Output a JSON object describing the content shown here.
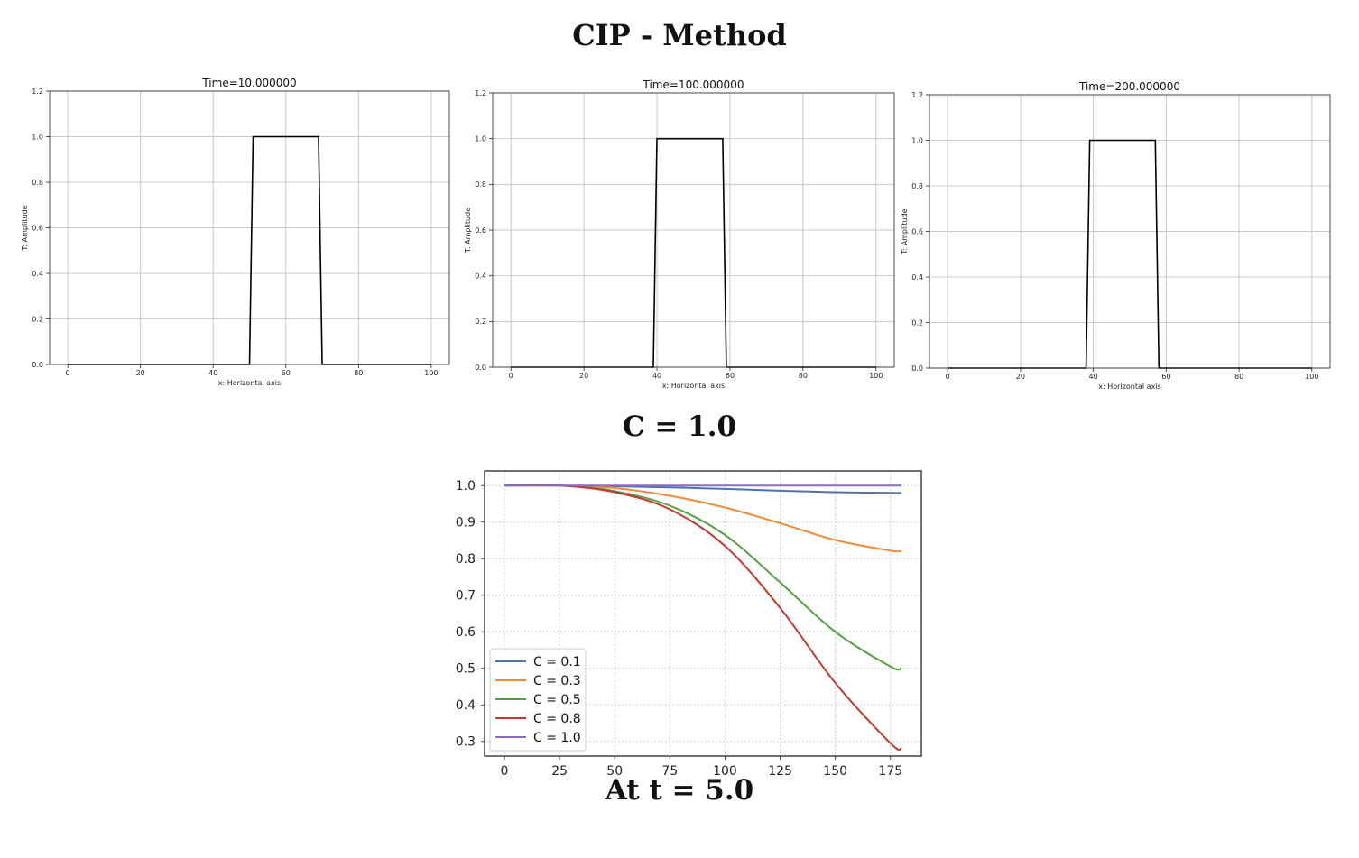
{
  "page": {
    "title": "CIP - Method",
    "section_label": "C = 1.0",
    "bottom_label": "At t = 5.0"
  },
  "chart_data": [
    {
      "type": "line",
      "title": "Time=10.000000",
      "xlabel": "x: Horizontal axis",
      "ylabel": "T: Amplitude",
      "xlim": [
        -5,
        105
      ],
      "ylim": [
        0,
        1.2
      ],
      "xticks": [
        0,
        20,
        40,
        60,
        80,
        100
      ],
      "yticks": [
        0.0,
        0.2,
        0.4,
        0.6,
        0.8,
        1.0,
        1.2
      ],
      "grid": true,
      "series": [
        {
          "color": "#000000",
          "x": [
            0,
            50,
            51,
            69,
            70,
            100
          ],
          "y": [
            0,
            0,
            1,
            1,
            0,
            0
          ]
        }
      ]
    },
    {
      "type": "line",
      "title": "Time=100.000000",
      "xlabel": "x: Horizontal axis",
      "ylabel": "T: Amplitude",
      "xlim": [
        -5,
        105
      ],
      "ylim": [
        0,
        1.2
      ],
      "xticks": [
        0,
        20,
        40,
        60,
        80,
        100
      ],
      "yticks": [
        0.0,
        0.2,
        0.4,
        0.6,
        0.8,
        1.0,
        1.2
      ],
      "grid": true,
      "series": [
        {
          "color": "#000000",
          "x": [
            0,
            39,
            40,
            58,
            59,
            100
          ],
          "y": [
            0,
            0,
            1,
            1,
            0,
            0
          ]
        }
      ]
    },
    {
      "type": "line",
      "title": "Time=200.000000",
      "xlabel": "x: Horizontal axis",
      "ylabel": "T: Amplitude",
      "xlim": [
        -5,
        105
      ],
      "ylim": [
        0,
        1.2
      ],
      "xticks": [
        0,
        20,
        40,
        60,
        80,
        100
      ],
      "yticks": [
        0.0,
        0.2,
        0.4,
        0.6,
        0.8,
        1.0,
        1.2
      ],
      "grid": true,
      "series": [
        {
          "color": "#000000",
          "x": [
            0,
            38,
            39,
            57,
            58,
            100
          ],
          "y": [
            0,
            0,
            1,
            1,
            0,
            0
          ]
        }
      ]
    },
    {
      "type": "line",
      "title": "",
      "xlabel": "",
      "ylabel": "",
      "xlim": [
        -9,
        189
      ],
      "ylim": [
        0.26,
        1.04
      ],
      "xticks": [
        0,
        25,
        50,
        75,
        100,
        125,
        150,
        175
      ],
      "yticks": [
        0.3,
        0.4,
        0.5,
        0.6,
        0.7,
        0.8,
        0.9,
        1.0
      ],
      "grid": true,
      "legend": "lower-left",
      "series": [
        {
          "name": "C = 0.1",
          "color": "#4c72b0",
          "x": [
            0,
            25,
            50,
            75,
            100,
            125,
            150,
            175,
            180
          ],
          "y": [
            1.0,
            1.0,
            0.998,
            0.995,
            0.991,
            0.986,
            0.982,
            0.98,
            0.98
          ]
        },
        {
          "name": "C = 0.3",
          "color": "#ee8a3a",
          "x": [
            0,
            25,
            50,
            75,
            100,
            125,
            150,
            175,
            180
          ],
          "y": [
            1.0,
            1.0,
            0.993,
            0.972,
            0.94,
            0.897,
            0.851,
            0.822,
            0.821
          ]
        },
        {
          "name": "C = 0.5",
          "color": "#55a043",
          "x": [
            0,
            25,
            50,
            75,
            100,
            125,
            150,
            175,
            180
          ],
          "y": [
            1.0,
            1.0,
            0.985,
            0.945,
            0.865,
            0.735,
            0.6,
            0.505,
            0.5
          ]
        },
        {
          "name": "C = 0.8",
          "color": "#c03a2f",
          "x": [
            0,
            25,
            50,
            75,
            100,
            125,
            150,
            175,
            180
          ],
          "y": [
            1.0,
            1.0,
            0.982,
            0.935,
            0.835,
            0.665,
            0.46,
            0.295,
            0.28
          ]
        },
        {
          "name": "C = 1.0",
          "color": "#8c6bc4",
          "x": [
            0,
            25,
            50,
            75,
            100,
            125,
            150,
            175,
            180
          ],
          "y": [
            1.0,
            1.0,
            1.0,
            1.0,
            1.0,
            1.0,
            1.0,
            1.0,
            1.0
          ]
        }
      ]
    }
  ]
}
